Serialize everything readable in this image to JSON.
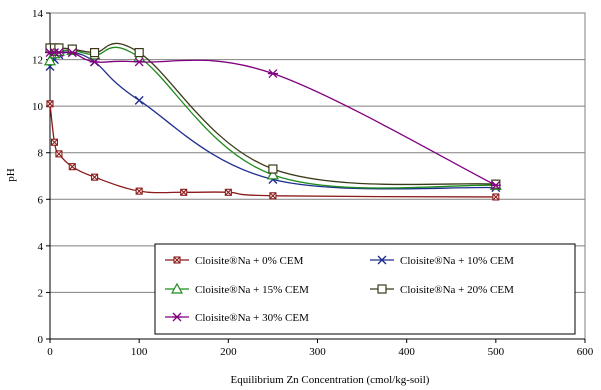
{
  "chart_data": {
    "type": "line",
    "xlabel": "Equilibrium  Zn Concentration (cmol/kg-soil)",
    "ylabel": "pH",
    "xlim": [
      0,
      600
    ],
    "ylim": [
      0,
      14
    ],
    "xticks": [
      0,
      100,
      200,
      300,
      400,
      500,
      600
    ],
    "yticks": [
      0,
      2,
      4,
      6,
      8,
      10,
      12,
      14
    ],
    "grid": "horizontal",
    "legend_position": "bottom-center",
    "series": [
      {
        "name": "Cloisite®Na + 0% CEM",
        "color": "#8B1A1A",
        "marker": "square-x",
        "x": [
          0,
          5,
          10,
          25,
          50,
          100,
          150,
          200,
          250,
          500
        ],
        "y": [
          10.1,
          8.45,
          7.95,
          7.4,
          6.95,
          6.35,
          6.3,
          6.3,
          6.15,
          6.1
        ]
      },
      {
        "name": "Cloisite®Na + 10% CEM",
        "color": "#1F2F8F",
        "marker": "x",
        "x": [
          0,
          5,
          10,
          25,
          50,
          100,
          250,
          500
        ],
        "y": [
          11.7,
          12.0,
          12.2,
          12.3,
          11.9,
          10.25,
          6.85,
          6.5
        ]
      },
      {
        "name": "Cloisite®Na + 15% CEM",
        "color": "#1E8C1E",
        "marker": "triangle",
        "x": [
          0,
          5,
          10,
          25,
          50,
          100,
          250,
          500
        ],
        "y": [
          11.95,
          12.25,
          12.35,
          12.4,
          12.2,
          12.1,
          7.05,
          6.6
        ]
      },
      {
        "name": "Cloisite®Na + 20% CEM",
        "color": "#3A3A1A",
        "marker": "square",
        "x": [
          0,
          5,
          10,
          25,
          50,
          100,
          250,
          500
        ],
        "y": [
          12.5,
          12.5,
          12.5,
          12.45,
          12.3,
          12.3,
          7.3,
          6.65
        ]
      },
      {
        "name": "Cloisite®Na + 30% CEM",
        "color": "#800080",
        "marker": "asterisk",
        "x": [
          0,
          5,
          10,
          25,
          50,
          100,
          250,
          500
        ],
        "y": [
          12.3,
          12.3,
          12.3,
          12.3,
          11.9,
          11.9,
          11.4,
          6.6
        ]
      }
    ]
  }
}
